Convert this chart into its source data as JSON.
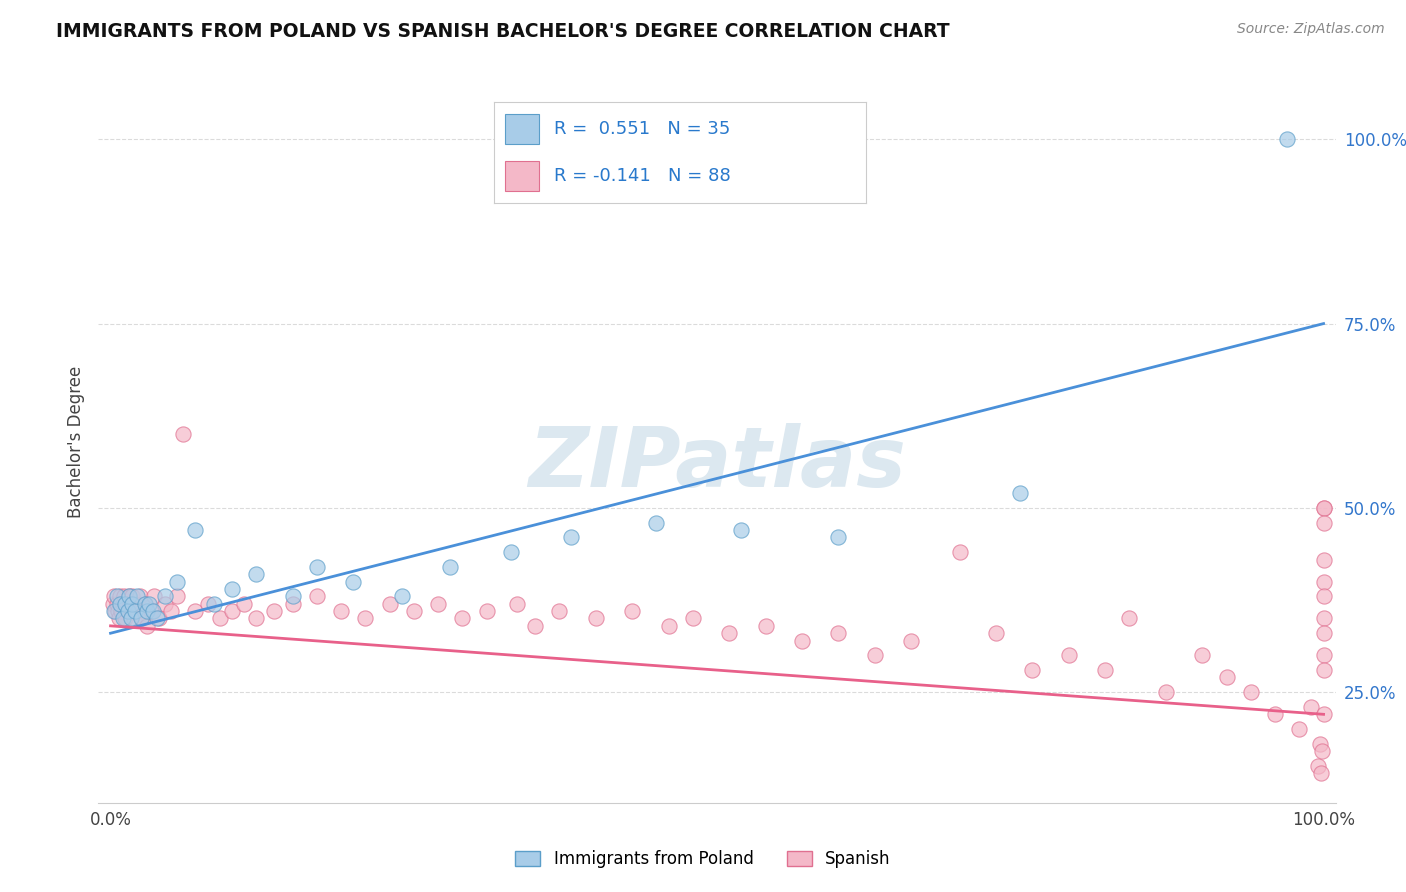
{
  "title": "IMMIGRANTS FROM POLAND VS SPANISH BACHELOR'S DEGREE CORRELATION CHART",
  "source_text": "Source: ZipAtlas.com",
  "ylabel": "Bachelor's Degree",
  "legend_label_1": "Immigrants from Poland",
  "legend_label_2": "Spanish",
  "r1": "0.551",
  "n1": "35",
  "r2": "-0.141",
  "n2": "88",
  "color_blue_fill": "#a8cce8",
  "color_blue_edge": "#5b9ec9",
  "color_blue_line": "#4a90d9",
  "color_pink_fill": "#f4b8c8",
  "color_pink_edge": "#e07090",
  "color_pink_line": "#e8608a",
  "color_legend_text": "#2979cc",
  "watermark_text": "ZIPatlas",
  "watermark_color": "#dce8f0",
  "background_color": "#ffffff",
  "grid_color": "#cccccc",
  "blue_x": [
    0.3,
    0.5,
    0.8,
    1.0,
    1.2,
    1.4,
    1.5,
    1.7,
    1.8,
    2.0,
    2.2,
    2.5,
    2.8,
    3.0,
    3.2,
    3.5,
    3.8,
    4.5,
    5.5,
    7.0,
    8.5,
    10.0,
    12.0,
    15.0,
    17.0,
    20.0,
    24.0,
    28.0,
    33.0,
    38.0,
    45.0,
    52.0,
    60.0,
    75.0,
    97.0
  ],
  "blue_y": [
    36,
    38,
    37,
    35,
    37,
    36,
    38,
    35,
    37,
    36,
    38,
    35,
    37,
    36,
    37,
    36,
    35,
    38,
    40,
    47,
    37,
    39,
    41,
    38,
    42,
    40,
    38,
    42,
    44,
    46,
    48,
    47,
    46,
    52,
    100
  ],
  "pink_x": [
    0.2,
    0.3,
    0.4,
    0.5,
    0.6,
    0.7,
    0.8,
    0.9,
    1.0,
    1.1,
    1.2,
    1.3,
    1.4,
    1.5,
    1.6,
    1.7,
    1.8,
    1.9,
    2.0,
    2.2,
    2.4,
    2.6,
    2.8,
    3.0,
    3.3,
    3.6,
    4.0,
    4.5,
    5.0,
    5.5,
    6.0,
    7.0,
    8.0,
    9.0,
    10.0,
    11.0,
    12.0,
    13.5,
    15.0,
    17.0,
    19.0,
    21.0,
    23.0,
    25.0,
    27.0,
    29.0,
    31.0,
    33.5,
    35.0,
    37.0,
    40.0,
    43.0,
    46.0,
    48.0,
    51.0,
    54.0,
    57.0,
    60.0,
    63.0,
    66.0,
    70.0,
    73.0,
    76.0,
    79.0,
    82.0,
    84.0,
    87.0,
    90.0,
    92.0,
    94.0,
    96.0,
    98.0,
    99.0,
    99.5,
    99.7,
    99.8,
    99.9,
    100.0,
    100.0,
    100.0,
    100.0,
    100.0,
    100.0,
    100.0,
    100.0,
    100.0,
    100.0,
    100.0
  ],
  "pink_y": [
    37,
    38,
    36,
    37,
    36,
    35,
    38,
    36,
    37,
    38,
    35,
    37,
    36,
    38,
    37,
    36,
    38,
    35,
    37,
    36,
    38,
    35,
    37,
    34,
    36,
    38,
    35,
    37,
    36,
    38,
    60,
    36,
    37,
    35,
    36,
    37,
    35,
    36,
    37,
    38,
    36,
    35,
    37,
    36,
    37,
    35,
    36,
    37,
    34,
    36,
    35,
    36,
    34,
    35,
    33,
    34,
    32,
    33,
    30,
    32,
    44,
    33,
    28,
    30,
    28,
    35,
    25,
    30,
    27,
    25,
    22,
    20,
    23,
    15,
    18,
    14,
    17,
    50,
    50,
    48,
    43,
    40,
    38,
    35,
    33,
    30,
    28,
    22
  ]
}
